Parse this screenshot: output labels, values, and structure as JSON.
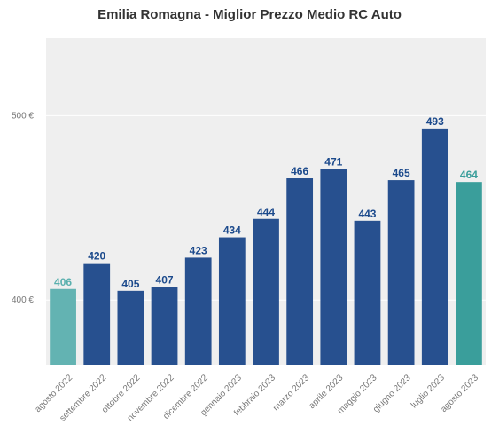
{
  "chart_data": {
    "type": "bar",
    "title": "Emilia Romagna - Miglior Prezzo Medio RC Auto",
    "xlabel": "",
    "ylabel": "",
    "categories": [
      "agosto 2022",
      "settembre 2022",
      "ottobre 2022",
      "novembre 2022",
      "dicembre 2022",
      "gennaio 2023",
      "febbraio 2023",
      "marzo 2023",
      "aprile 2023",
      "maggio 2023",
      "giugno 2023",
      "luglio 2023",
      "agosto 2023"
    ],
    "values": [
      406,
      420,
      405,
      407,
      423,
      434,
      444,
      466,
      471,
      443,
      465,
      493,
      464
    ],
    "value_labels": [
      "406",
      "420",
      "405",
      "407",
      "423",
      "434",
      "444",
      "466",
      "471",
      "443",
      "465",
      "493",
      "464"
    ],
    "ylim": [
      365,
      542
    ],
    "yticks": [
      400,
      500
    ],
    "ytick_labels": [
      "400 €",
      "500 €"
    ],
    "grid": true,
    "background": "#efefef",
    "colors": {
      "default": "#27508f",
      "first": "#63b3b2",
      "last": "#3a9e9b",
      "default_label": "#1c4a8c",
      "first_label": "#5ab0ae",
      "last_label": "#3a9e9b"
    }
  }
}
